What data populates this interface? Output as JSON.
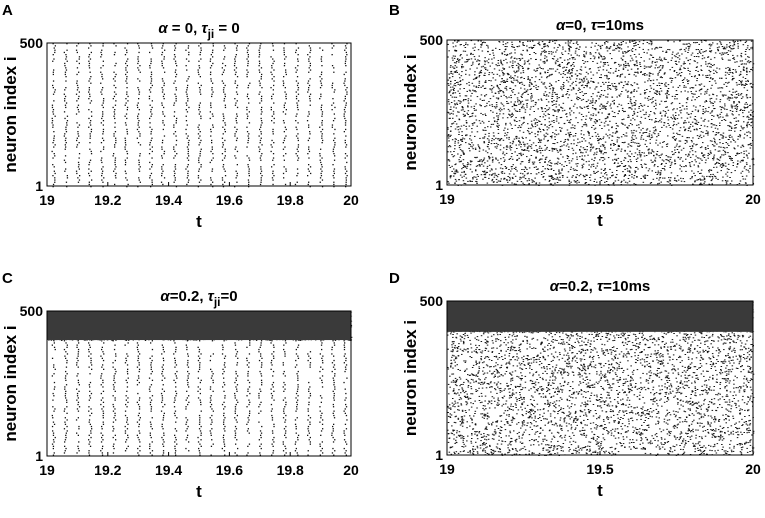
{
  "chart_data": [
    {
      "panel": "A",
      "type": "scatter",
      "title_parts": [
        "α",
        " = 0, ",
        "τ",
        "ji",
        " = 0"
      ],
      "xlabel": "t",
      "ylabel": "neuron index i",
      "xlim": [
        19,
        20
      ],
      "ylim": [
        1,
        500
      ],
      "xticks": [
        "19",
        "19.2",
        "19.4",
        "19.6",
        "19.8",
        "20"
      ],
      "yticks": [
        "1",
        "500"
      ],
      "pattern": "synchronized",
      "sync_bursts_per_unit_t": 25,
      "sync_neuron_range": [
        1,
        500
      ],
      "async_neuron_range": null
    },
    {
      "panel": "B",
      "type": "scatter",
      "title_parts": [
        "α",
        "=0, ",
        "τ",
        "",
        "=10ms"
      ],
      "xlabel": "t",
      "ylabel": "neuron index i",
      "xlim": [
        19,
        20
      ],
      "ylim": [
        1,
        500
      ],
      "xticks": [
        "19",
        "19.5",
        "20"
      ],
      "yticks": [
        "1",
        "500"
      ],
      "pattern": "asynchronous",
      "sync_bursts_per_unit_t": 0,
      "sync_neuron_range": null,
      "async_neuron_range": [
        1,
        500
      ]
    },
    {
      "panel": "C",
      "type": "scatter",
      "title_parts": [
        "α",
        "=0.2, ",
        "τ",
        "ji",
        "=0"
      ],
      "xlabel": "t",
      "ylabel": "neuron index i",
      "xlim": [
        19,
        20
      ],
      "ylim": [
        1,
        500
      ],
      "xticks": [
        "19",
        "19.2",
        "19.4",
        "19.6",
        "19.8",
        "20"
      ],
      "yticks": [
        "1",
        "500"
      ],
      "pattern": "synchronized-with-dense-band",
      "sync_bursts_per_unit_t": 25,
      "sync_neuron_range": [
        1,
        400
      ],
      "dense_band_range": [
        400,
        500
      ]
    },
    {
      "panel": "D",
      "type": "scatter",
      "title_parts": [
        "α",
        "=0.2, ",
        "τ",
        "",
        "=10ms"
      ],
      "xlabel": "t",
      "ylabel": "neuron index i",
      "xlim": [
        19,
        20
      ],
      "ylim": [
        1,
        500
      ],
      "xticks": [
        "19",
        "19.5",
        "20"
      ],
      "yticks": [
        "1",
        "500"
      ],
      "pattern": "asynchronous-with-dense-band",
      "sync_bursts_per_unit_t": 0,
      "async_neuron_range": [
        1,
        400
      ],
      "dense_band_range": [
        400,
        500
      ]
    }
  ]
}
